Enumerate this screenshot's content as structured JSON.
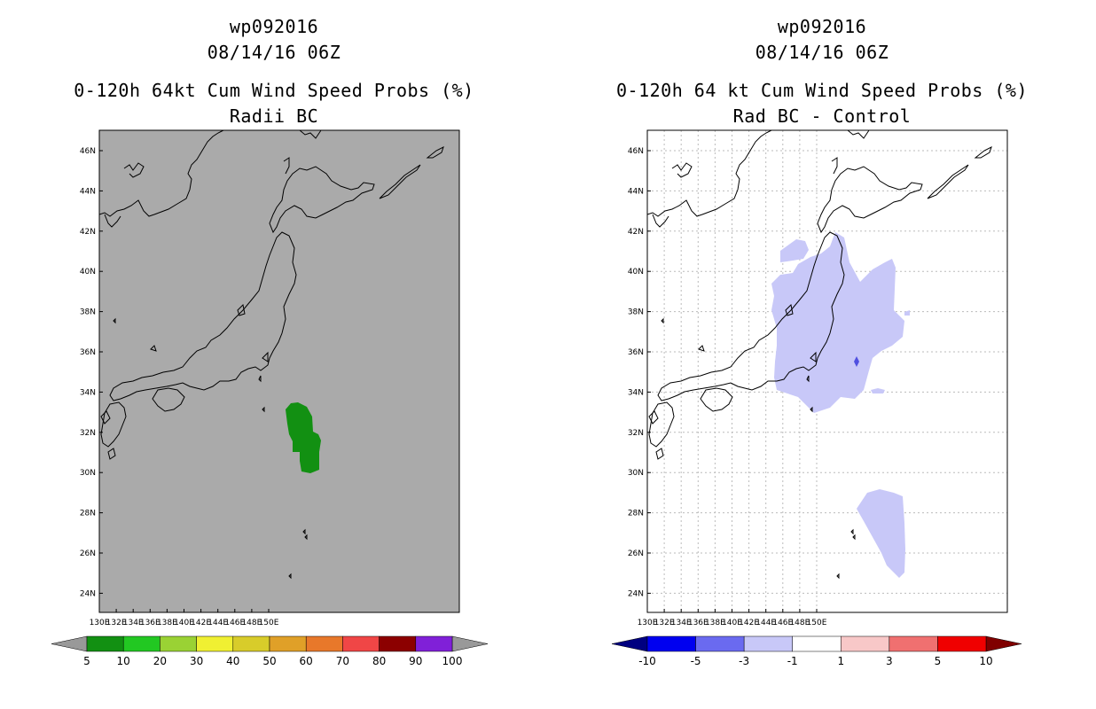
{
  "left": {
    "title": [
      "wp092016",
      "08/14/16 06Z",
      "0-120h 64kt Cum Wind Speed Probs (%)",
      "Radii BC"
    ],
    "background": "#aaaaaa",
    "fill_color": "#129012",
    "lat_labels": [
      "46N",
      "44N",
      "42N",
      "40N",
      "38N",
      "36N",
      "34N",
      "32N",
      "30N",
      "28N",
      "26N",
      "24N"
    ],
    "lon_labels": [
      "130E",
      "132E",
      "134E",
      "136E",
      "138E",
      "140E",
      "142E",
      "144E",
      "146E",
      "148E",
      "150E"
    ],
    "colorbar": {
      "colors": [
        "#129012",
        "#22c822",
        "#9ad234",
        "#f0f032",
        "#d8cc2a",
        "#e0a028",
        "#e8782a",
        "#f04646",
        "#8c0000",
        "#8020d8"
      ],
      "labels": [
        "5",
        "10",
        "20",
        "30",
        "40",
        "50",
        "60",
        "70",
        "80",
        "90",
        "100"
      ],
      "left_cap": "#999999",
      "right_cap": "#999999"
    }
  },
  "right": {
    "title": [
      "wp092016",
      "08/14/16 06Z",
      "0-120h 64 kt Cum Wind Speed Probs (%)",
      "Rad BC - Control"
    ],
    "background": "#ffffff",
    "fill_color": "#c8c8f8",
    "dot_color": "#5050e0",
    "lat_labels": [
      "46N",
      "44N",
      "42N",
      "40N",
      "38N",
      "36N",
      "34N",
      "32N",
      "30N",
      "28N",
      "26N",
      "24N"
    ],
    "lon_labels": [
      "130E",
      "132E",
      "134E",
      "136E",
      "138E",
      "140E",
      "142E",
      "144E",
      "146E",
      "148E",
      "150E"
    ],
    "colorbar": {
      "colors": [
        "#0000f0",
        "#6a6af0",
        "#c8c8f8",
        "#ffffff",
        "#f8c8c8",
        "#f07070",
        "#f00000"
      ],
      "labels": [
        "-10",
        "-5",
        "-3",
        "-1",
        "1",
        "3",
        "5",
        "10"
      ],
      "left_cap": "#000080",
      "right_cap": "#800000"
    }
  }
}
